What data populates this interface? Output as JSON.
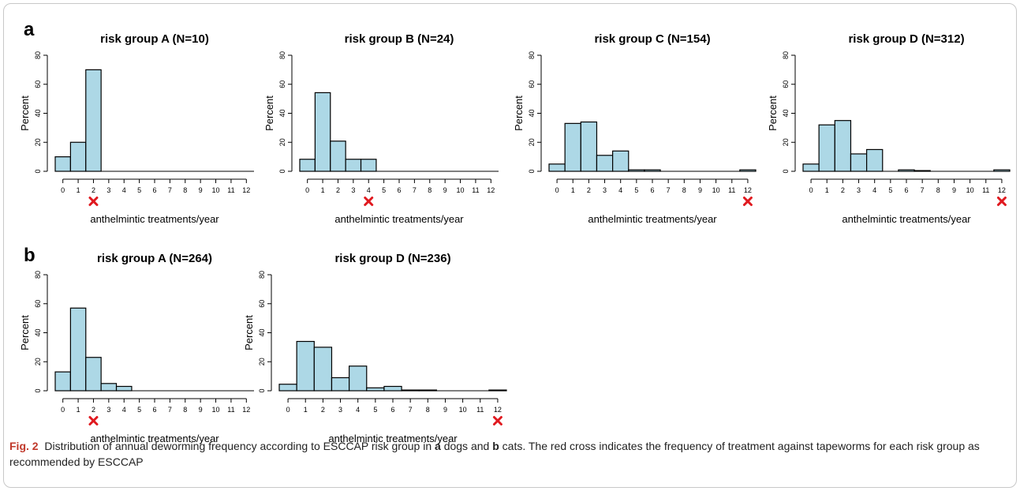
{
  "panel_a_label": "a",
  "panel_b_label": "b",
  "caption": {
    "fig_label": "Fig. 2",
    "text_1": "Distribution of annual deworming frequency according to ESCCAP risk group in ",
    "panel_a": "a",
    "text_2": " dogs and ",
    "panel_b": "b",
    "text_3": " cats. The red cross indicates the frequency of treatment against tapeworms for each risk group as recommended by ESCCAP"
  },
  "colors": {
    "bar_fill": "#add8e6",
    "bar_stroke": "#000000",
    "cross": "#e0191f"
  },
  "chart_data": [
    {
      "type": "bar",
      "panel": "a",
      "title": "risk group A (N=10)",
      "xlabel": "anthelmintic treatments/year",
      "ylabel": "Percent",
      "categories": [
        "0",
        "1",
        "2",
        "3",
        "4",
        "5",
        "6",
        "7",
        "8",
        "9",
        "10",
        "11",
        "12"
      ],
      "values": [
        10,
        20,
        70,
        0,
        0,
        0,
        0,
        0,
        0,
        0,
        0,
        0,
        0
      ],
      "ylim": [
        0,
        80
      ],
      "yticks": [
        "0",
        "20",
        "40",
        "60",
        "80"
      ],
      "recommended": 2
    },
    {
      "type": "bar",
      "panel": "a",
      "title": "risk group B (N=24)",
      "xlabel": "anthelmintic treatments/year",
      "ylabel": "Percent",
      "categories": [
        "0",
        "1",
        "2",
        "3",
        "4",
        "5",
        "6",
        "7",
        "8",
        "9",
        "10",
        "11",
        "12"
      ],
      "values": [
        8.3,
        54.2,
        20.8,
        8.3,
        8.3,
        0,
        0,
        0,
        0,
        0,
        0,
        0,
        0
      ],
      "ylim": [
        0,
        80
      ],
      "yticks": [
        "0",
        "20",
        "40",
        "60",
        "80"
      ],
      "recommended": 4
    },
    {
      "type": "bar",
      "panel": "a",
      "title": "risk group C (N=154)",
      "xlabel": "anthelmintic treatments/year",
      "ylabel": "Percent",
      "categories": [
        "0",
        "1",
        "2",
        "3",
        "4",
        "5",
        "6",
        "7",
        "8",
        "9",
        "10",
        "11",
        "12"
      ],
      "values": [
        5,
        33,
        34,
        11,
        14,
        1,
        1,
        0,
        0,
        0,
        0,
        0,
        1
      ],
      "ylim": [
        0,
        80
      ],
      "yticks": [
        "0",
        "20",
        "40",
        "60",
        "80"
      ],
      "recommended": 12
    },
    {
      "type": "bar",
      "panel": "a",
      "title": "risk group D (N=312)",
      "xlabel": "anthelmintic treatments/year",
      "ylabel": "Percent",
      "categories": [
        "0",
        "1",
        "2",
        "3",
        "4",
        "5",
        "6",
        "7",
        "8",
        "9",
        "10",
        "11",
        "12"
      ],
      "values": [
        5,
        32,
        35,
        12,
        15,
        0,
        1,
        0.5,
        0,
        0,
        0,
        0,
        1
      ],
      "ylim": [
        0,
        80
      ],
      "yticks": [
        "0",
        "20",
        "40",
        "60",
        "80"
      ],
      "recommended": 12
    },
    {
      "type": "bar",
      "panel": "b",
      "title": "risk group A (N=264)",
      "xlabel": "anthelmintic treatments/year",
      "ylabel": "Percent",
      "categories": [
        "0",
        "1",
        "2",
        "3",
        "4",
        "5",
        "6",
        "7",
        "8",
        "9",
        "10",
        "11",
        "12"
      ],
      "values": [
        13,
        57,
        23,
        5,
        3,
        0,
        0,
        0,
        0,
        0,
        0,
        0,
        0
      ],
      "ylim": [
        0,
        80
      ],
      "yticks": [
        "0",
        "20",
        "40",
        "60",
        "80"
      ],
      "recommended": 2
    },
    {
      "type": "bar",
      "panel": "b",
      "title": "risk group D (N=236)",
      "xlabel": "anthelmintic treatments/year",
      "ylabel": "Percent",
      "categories": [
        "0",
        "1",
        "2",
        "3",
        "4",
        "5",
        "6",
        "7",
        "8",
        "9",
        "10",
        "11",
        "12"
      ],
      "values": [
        4.5,
        34,
        30,
        9,
        17,
        2,
        3,
        0.5,
        0.5,
        0,
        0,
        0,
        0.5
      ],
      "ylim": [
        0,
        80
      ],
      "yticks": [
        "0",
        "20",
        "40",
        "60",
        "80"
      ],
      "recommended": 12
    }
  ]
}
